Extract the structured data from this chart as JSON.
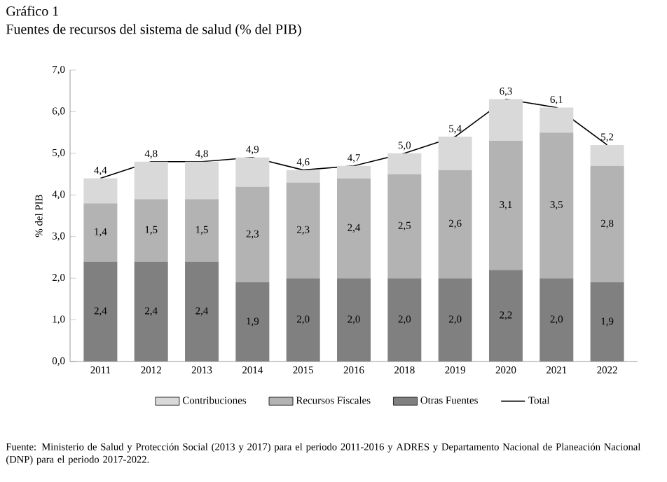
{
  "chart_data": {
    "type": "bar",
    "stacked": true,
    "title": "Gráfico 1",
    "subtitle": "Fuentes de recursos del sistema de salud (% del PIB)",
    "ylabel": "% del PIB",
    "categories": [
      "2011",
      "2012",
      "2013",
      "2014",
      "2015",
      "2016",
      "2018",
      "2019",
      "2020",
      "2021",
      "2022"
    ],
    "series": [
      {
        "name": "Otras Fuentes",
        "color": "#808080",
        "values": [
          2.4,
          2.4,
          2.4,
          1.9,
          2.0,
          2.0,
          2.0,
          2.0,
          2.2,
          2.0,
          1.9
        ],
        "value_labels": [
          "2,4",
          "2,4",
          "2,4",
          "1,9",
          "2,0",
          "2,0",
          "2,0",
          "2,0",
          "2,2",
          "2,0",
          "1,9"
        ]
      },
      {
        "name": "Recursos Fiscales",
        "color": "#b3b3b3",
        "values": [
          1.4,
          1.5,
          1.5,
          2.3,
          2.3,
          2.4,
          2.5,
          2.6,
          3.1,
          3.5,
          2.8
        ],
        "value_labels": [
          "1,4",
          "1,5",
          "1,5",
          "2,3",
          "2,3",
          "2,4",
          "2,5",
          "2,6",
          "3,1",
          "3,5",
          "2,8"
        ]
      },
      {
        "name": "Contribuciones",
        "color": "#d9d9d9",
        "values": [
          0.6,
          0.9,
          0.9,
          0.7,
          0.3,
          0.3,
          0.5,
          0.8,
          1.0,
          0.6,
          0.5
        ]
      },
      {
        "name": "Total",
        "type": "line",
        "color": "#000000",
        "values": [
          4.4,
          4.8,
          4.8,
          4.9,
          4.6,
          4.7,
          5.0,
          5.4,
          6.3,
          6.1,
          5.2
        ],
        "value_labels": [
          "4,4",
          "4,8",
          "4,8",
          "4,9",
          "4,6",
          "4,7",
          "5,0",
          "5,4",
          "6,3",
          "6,1",
          "5,2"
        ]
      }
    ],
    "ylim": [
      0,
      7
    ],
    "yticks": [
      {
        "value": 0,
        "label": "0,0"
      },
      {
        "value": 1,
        "label": "1,0"
      },
      {
        "value": 2,
        "label": "2,0"
      },
      {
        "value": 3,
        "label": "3,0"
      },
      {
        "value": 4,
        "label": "4,0"
      },
      {
        "value": 5,
        "label": "5,0"
      },
      {
        "value": 6,
        "label": "6,0"
      },
      {
        "value": 7,
        "label": "7,0"
      }
    ],
    "legend": "bottom",
    "grid": false,
    "marker": "none",
    "annotations": [
      "Fuente: Ministerio de Salud y Protección Social (2013 y 2017) para el periodo 2011-2016 y ADRES y Departamento Nacional de Planeación Nacional (DNP) para el periodo 2017-2022."
    ]
  }
}
